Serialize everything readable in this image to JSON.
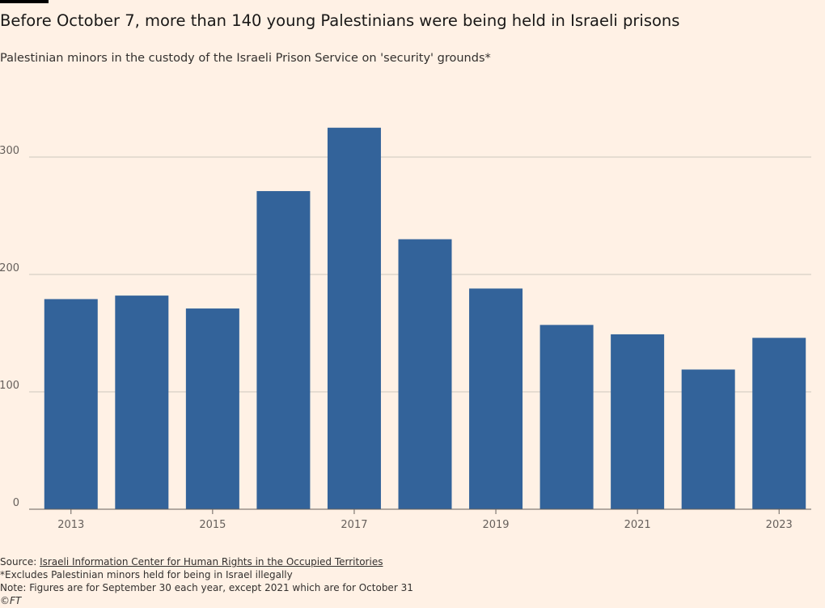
{
  "title": "Before October 7, more than 140 young Palestinians were being held in Israeli prisons",
  "subtitle": "Palestinian minors in the custody of the Israeli Prison Service on 'security' grounds*",
  "footer": {
    "source_prefix": "Source: ",
    "source_link": "Israeli Information Center for Human Rights in the Occupied Territories",
    "footnote": "*Excludes Palestinian minors held for being in Israel illegally",
    "note": "Note: Figures are for September 30 each year, except 2021 which are for October 31",
    "copyright": "©FT"
  },
  "colors": {
    "bar": "#33639a",
    "grid": "#cec6bd",
    "axis": "#66605c",
    "background": "#fff1e5"
  },
  "chart_data": {
    "type": "bar",
    "categories": [
      "2013",
      "2014",
      "2015",
      "2016",
      "2017",
      "2018",
      "2019",
      "2020",
      "2021",
      "2022",
      "2023"
    ],
    "values": [
      179,
      182,
      171,
      271,
      325,
      230,
      188,
      157,
      149,
      119,
      146
    ],
    "x_tick_labels": [
      "2013",
      "",
      "2015",
      "",
      "2017",
      "",
      "2019",
      "",
      "2021",
      "",
      "2023"
    ],
    "y_ticks": [
      0,
      100,
      200,
      300
    ],
    "ylim": [
      0,
      330
    ],
    "grid": true,
    "title": "Before October 7, more than 140 young Palestinians were being held in Israeli prisons",
    "xlabel": "",
    "ylabel": ""
  }
}
